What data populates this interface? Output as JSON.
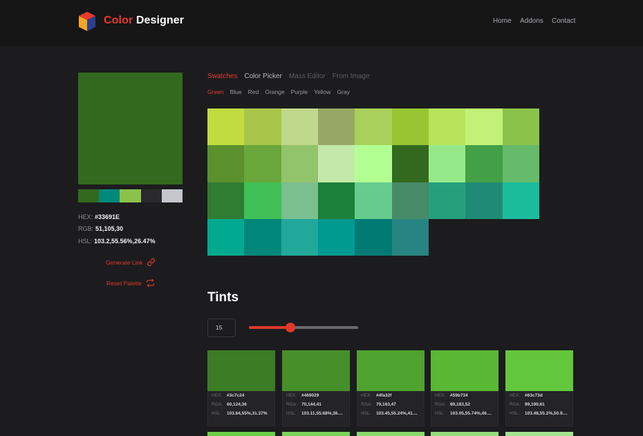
{
  "header": {
    "brand_part1": "Color",
    "brand_part2": "Designer",
    "nav": [
      "Home",
      "Addons",
      "Contact"
    ]
  },
  "current": {
    "color": "#33691E",
    "hex_label": "HEX:",
    "hex": "#33691E",
    "rgb_label": "RGB:",
    "rgb": "51,105,30",
    "hsl_label": "HSL:",
    "hsl": "103.2,55.56%,26.47%"
  },
  "palette": [
    "#33691e",
    "#00897b",
    "#8bc34a",
    "#2a2a2c",
    "#c4c6cc"
  ],
  "actions": {
    "generate_link": "Generate Link",
    "reset_palette": "Reset Palette"
  },
  "tabs": [
    {
      "label": "Swatches",
      "state": "active"
    },
    {
      "label": "Color Picker",
      "state": "normal"
    },
    {
      "label": "Mass Editor",
      "state": "dim"
    },
    {
      "label": "From Image",
      "state": "dim"
    }
  ],
  "subtabs": [
    {
      "label": "Green",
      "active": true
    },
    {
      "label": "Blue",
      "active": false
    },
    {
      "label": "Red",
      "active": false
    },
    {
      "label": "Orange",
      "active": false
    },
    {
      "label": "Purple",
      "active": false
    },
    {
      "label": "Yellow",
      "active": false
    },
    {
      "label": "Gray",
      "active": false
    }
  ],
  "swatches": [
    "#c0dc3e",
    "#aac64a",
    "#c0d88b",
    "#97a866",
    "#a9d05a",
    "#98c632",
    "#b7e45b",
    "#c1f277",
    "#8bc34a",
    "#5b912c",
    "#6aa73c",
    "#92c46c",
    "#c4e8a8",
    "#b2ff92",
    "#33691e",
    "#96e98b",
    "#43a047",
    "#66bb6a",
    "#2e7d32",
    "#40c057",
    "#7cbf8e",
    "#1b803a",
    "#66cc8e",
    "#488b68",
    "#26a07c",
    "#1f8a76",
    "#1abc9c",
    "#00a98f",
    "#00877a",
    "#22a89b",
    "#009a90",
    "#007a73",
    "#278482"
  ],
  "tints": {
    "title": "Tints",
    "count": "15",
    "slider_fraction": 0.38,
    "labels": {
      "hex": "HEX:",
      "rga": "RGA:",
      "hsl": "HSL:"
    },
    "cards": [
      {
        "color": "#3c7c24",
        "hex": "#3c7c24",
        "rga": "60,124,36",
        "hsl": "103.64,55%,31.37%"
      },
      {
        "color": "#469029",
        "hex": "#469029",
        "rga": "70,144,41",
        "hsl": "103.11,55.68%,36...."
      },
      {
        "color": "#4fa32f",
        "hex": "#4fa32f",
        "rga": "79,163,47",
        "hsl": "103.45,55.24%,41...."
      },
      {
        "color": "#59b734",
        "hex": "#59b734",
        "rga": "89,183,52",
        "hsl": "103.05,55.74%,46...."
      },
      {
        "color": "#63c73d",
        "hex": "#63c73d",
        "rga": "99,199,61",
        "hsl": "103.48,55.2%,50.9...."
      }
    ],
    "next_row_colors": [
      "#6ccf47",
      "#7ad458",
      "#88d96a",
      "#96de7c",
      "#a4e38e"
    ]
  }
}
